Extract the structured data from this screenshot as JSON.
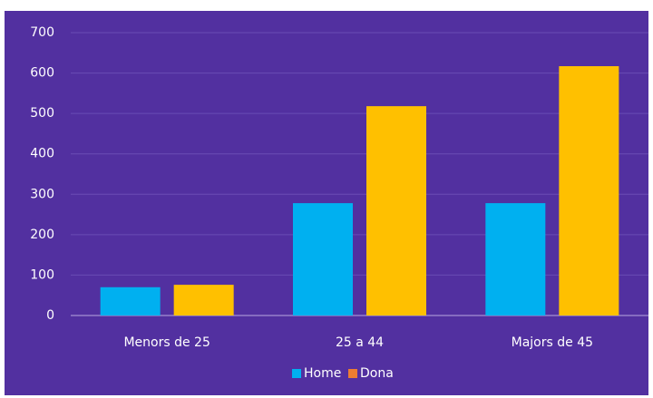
{
  "chart_data": {
    "type": "bar",
    "categories": [
      "Menors de 25",
      "25 a 44",
      "Majors de 45"
    ],
    "series": [
      {
        "name": "Home",
        "color": "#00b0f0",
        "legend_color": "#00b0f0",
        "values": [
          70,
          278,
          278
        ]
      },
      {
        "name": "Dona",
        "color": "#ffc000",
        "legend_color": "#ed7d31",
        "values": [
          76,
          518,
          617
        ]
      }
    ],
    "ylim": [
      0,
      700
    ],
    "yticks": [
      0,
      100,
      200,
      300,
      400,
      500,
      600,
      700
    ],
    "grid": true,
    "legend": "bottom"
  }
}
